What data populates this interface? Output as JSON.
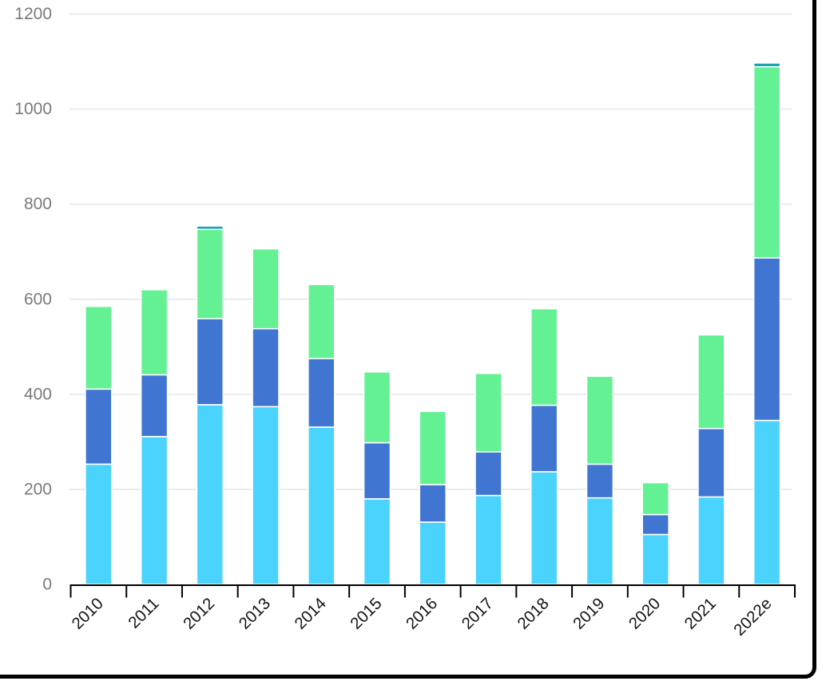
{
  "chart_data": {
    "type": "bar",
    "stacked": true,
    "title": "",
    "xlabel": "",
    "ylabel": "",
    "categories": [
      "2010",
      "2011",
      "2012",
      "2013",
      "2014",
      "2015",
      "2016",
      "2017",
      "2018",
      "2019",
      "2020",
      "2021",
      "2022e"
    ],
    "series": [
      {
        "name": "light-blue-segment",
        "color": "#4AD4FD",
        "values": [
          253,
          311,
          378,
          374,
          331,
          180,
          131,
          187,
          237,
          182,
          105,
          184,
          345
        ]
      },
      {
        "name": "blue-segment",
        "color": "#4076D2",
        "values": [
          158,
          130,
          181,
          164,
          144,
          118,
          79,
          92,
          140,
          71,
          42,
          144,
          342
        ]
      },
      {
        "name": "green-segment",
        "color": "#63F194",
        "values": [
          174,
          179,
          188,
          168,
          156,
          149,
          154,
          165,
          203,
          185,
          67,
          197,
          402
        ]
      },
      {
        "name": "teal-cap-segment",
        "color": "#10A5A8",
        "values": [
          0,
          0,
          7,
          0,
          0,
          0,
          0,
          0,
          0,
          0,
          0,
          0,
          8
        ]
      }
    ],
    "totals": [
      585,
      620,
      754,
      706,
      631,
      447,
      364,
      444,
      580,
      438,
      214,
      525,
      1097
    ],
    "ylim": [
      0,
      1200
    ],
    "yticks": [
      0,
      200,
      400,
      600,
      800,
      1000,
      1200
    ],
    "grid": true,
    "legend": "none",
    "x_label_rotation_deg": -45,
    "colors": {
      "grid_line": "#EAEAEA",
      "axis_line": "#000000",
      "y_tick_label": "#7A7A7A",
      "x_tick_label": "#141414",
      "segment_separator": "#FFFFFF",
      "card_border": "#000000",
      "background": "#FFFFFF"
    }
  }
}
